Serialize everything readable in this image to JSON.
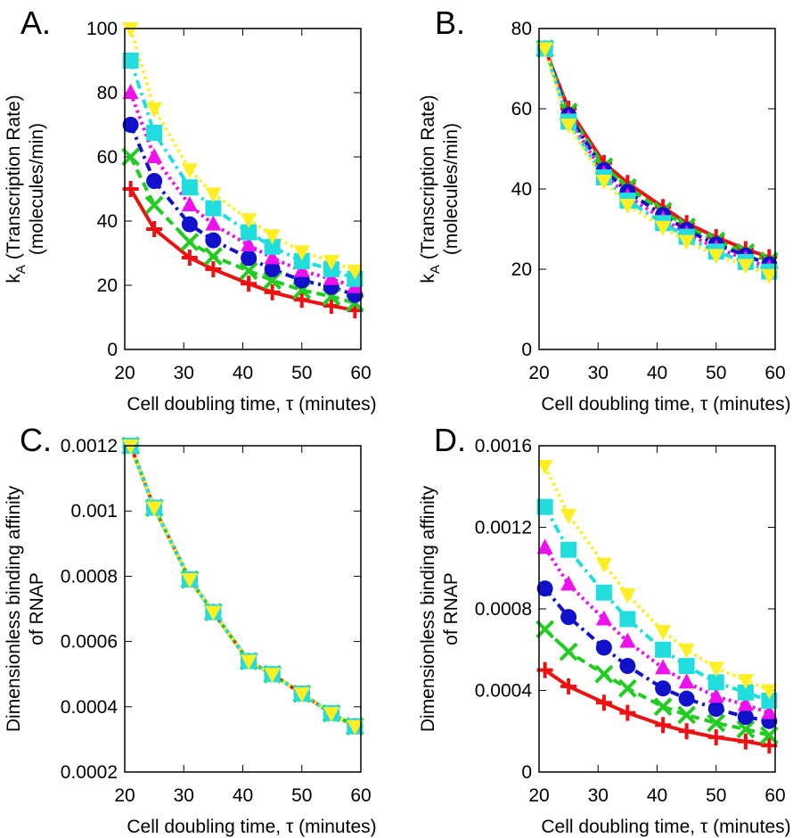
{
  "chart_data": [
    {
      "type": "line",
      "panel": "A.",
      "ylabel": {
        "symbol": "k",
        "subscript": "A",
        "text": "(Transcription Rate)",
        "line2": "(molecules/min)"
      },
      "xlabel": "Cell doubling time, τ (minutes)",
      "x": [
        21,
        25,
        31,
        35,
        41,
        45,
        50,
        55,
        59
      ],
      "xlim": [
        20,
        60
      ],
      "xticks": [
        20,
        30,
        40,
        50,
        60
      ],
      "ylim": [
        0,
        100
      ],
      "yticks": [
        0,
        20,
        40,
        60,
        80,
        100
      ],
      "series": [
        {
          "color": "#ee1111",
          "marker": "plus",
          "dash": "solid",
          "values": [
            50,
            37.5,
            28.6,
            25,
            20.5,
            17.8,
            15.5,
            13.6,
            12.2
          ]
        },
        {
          "color": "#22cc22",
          "marker": "cross",
          "dash": "dashed",
          "values": [
            60,
            45,
            33.5,
            29,
            24.5,
            21.5,
            18.5,
            16.5,
            14.5
          ]
        },
        {
          "color": "#1111cc",
          "marker": "circle",
          "dash": "dashdot",
          "values": [
            70,
            52.5,
            39,
            34,
            28.5,
            25,
            21.5,
            19.5,
            17
          ]
        },
        {
          "color": "#ee11ee",
          "marker": "triangle-up",
          "dash": "dotted",
          "values": [
            80,
            60,
            45,
            39,
            32.5,
            28.5,
            24.5,
            22,
            19.5
          ]
        },
        {
          "color": "#22dddd",
          "marker": "square",
          "dash": "dashdot",
          "values": [
            90,
            67.5,
            50.5,
            44,
            36.5,
            32,
            27.5,
            25,
            22
          ]
        },
        {
          "color": "#ffee22",
          "marker": "triangle-down",
          "dash": "dotted",
          "values": [
            100,
            75,
            56,
            48.5,
            40.5,
            35.5,
            30.5,
            27.5,
            24.5
          ]
        }
      ]
    },
    {
      "type": "line",
      "panel": "B.",
      "ylabel": {
        "symbol": "k",
        "subscript": "A",
        "text": "(Transcription Rate)",
        "line2": "(molecules/min)"
      },
      "xlabel": "Cell doubling time, τ (minutes)",
      "x": [
        21,
        25,
        31,
        35,
        41,
        45,
        50,
        55,
        59
      ],
      "xlim": [
        20,
        60
      ],
      "xticks": [
        20,
        30,
        40,
        50,
        60
      ],
      "ylim": [
        0,
        80
      ],
      "yticks": [
        0,
        20,
        40,
        60,
        80
      ],
      "series": [
        {
          "color": "#ee1111",
          "marker": "plus",
          "dash": "solid",
          "values": [
            75,
            60,
            46.5,
            41.5,
            35.5,
            31.5,
            28,
            25,
            23
          ]
        },
        {
          "color": "#22cc22",
          "marker": "cross",
          "dash": "dashed",
          "values": [
            75,
            59.2,
            45.6,
            40.4,
            34.5,
            30.6,
            27.1,
            24.2,
            22.1
          ]
        },
        {
          "color": "#1111cc",
          "marker": "circle",
          "dash": "dashdot",
          "values": [
            75,
            58.4,
            44.7,
            39.3,
            33.5,
            29.8,
            26.2,
            23.4,
            21.2
          ]
        },
        {
          "color": "#ee11ee",
          "marker": "triangle-up",
          "dash": "dotted",
          "values": [
            75,
            57.6,
            43.8,
            38.2,
            32.5,
            28.9,
            25.3,
            22.6,
            20.3
          ]
        },
        {
          "color": "#22dddd",
          "marker": "square",
          "dash": "dashdot",
          "values": [
            75,
            56.8,
            42.9,
            37.1,
            31.5,
            28.1,
            24.4,
            21.8,
            19.4
          ]
        },
        {
          "color": "#ffee22",
          "marker": "triangle-down",
          "dash": "dotted",
          "values": [
            75,
            56,
            42,
            36,
            30.5,
            27,
            23.5,
            21,
            18.5
          ]
        }
      ]
    },
    {
      "type": "line",
      "panel": "C.",
      "ylabel": {
        "text": "Dimensionless binding affinity",
        "line2": "of RNAP"
      },
      "xlabel": "Cell doubling time, τ (minutes)",
      "x": [
        21,
        25,
        31,
        35,
        41,
        45,
        50,
        55,
        59
      ],
      "xlim": [
        20,
        60
      ],
      "xticks": [
        20,
        30,
        40,
        50,
        60
      ],
      "ylim": [
        0.0002,
        0.0012
      ],
      "yticks": [
        0.0002,
        0.0004,
        0.0006,
        0.0008,
        0.001,
        0.0012
      ],
      "series": [
        {
          "color": "#ee1111",
          "marker": "plus",
          "dash": "solid",
          "values": [
            0.0012,
            0.00101,
            0.00079,
            0.00069,
            0.00054,
            0.0005,
            0.00044,
            0.00038,
            0.00034
          ]
        },
        {
          "color": "#22cc22",
          "marker": "cross",
          "dash": "dashed",
          "values": [
            0.0012,
            0.00101,
            0.00079,
            0.00069,
            0.00054,
            0.0005,
            0.00044,
            0.00038,
            0.00034
          ]
        },
        {
          "color": "#1111cc",
          "marker": "circle",
          "dash": "dashdot",
          "values": [
            0.0012,
            0.00101,
            0.00079,
            0.00069,
            0.00054,
            0.0005,
            0.00044,
            0.00038,
            0.00034
          ]
        },
        {
          "color": "#ee11ee",
          "marker": "triangle-up",
          "dash": "dotted",
          "values": [
            0.0012,
            0.00101,
            0.00079,
            0.00069,
            0.00054,
            0.0005,
            0.00044,
            0.00038,
            0.00034
          ]
        },
        {
          "color": "#22dddd",
          "marker": "square",
          "dash": "dashdot",
          "values": [
            0.0012,
            0.00101,
            0.00079,
            0.00069,
            0.00054,
            0.0005,
            0.00044,
            0.00038,
            0.00034
          ]
        },
        {
          "color": "#ffee22",
          "marker": "triangle-down",
          "dash": "dotted",
          "values": [
            0.0012,
            0.00101,
            0.00079,
            0.00069,
            0.00054,
            0.0005,
            0.00044,
            0.00038,
            0.00034
          ]
        }
      ]
    },
    {
      "type": "line",
      "panel": "D.",
      "ylabel": {
        "text": "Dimensionless binding affinity",
        "line2": "of RNAP"
      },
      "xlabel": "Cell doubling time, τ (minutes)",
      "x": [
        21,
        25,
        31,
        35,
        41,
        45,
        50,
        55,
        59
      ],
      "xlim": [
        20,
        60
      ],
      "xticks": [
        20,
        30,
        40,
        50,
        60
      ],
      "ylim": [
        0,
        0.0016
      ],
      "yticks": [
        0,
        0.0004,
        0.0008,
        0.0012,
        0.0016
      ],
      "series": [
        {
          "color": "#ee1111",
          "marker": "plus",
          "dash": "solid",
          "values": [
            0.0005,
            0.00042,
            0.00034,
            0.00029,
            0.00023,
            0.0002,
            0.00017,
            0.00015,
            0.00013
          ]
        },
        {
          "color": "#22cc22",
          "marker": "cross",
          "dash": "dashed",
          "values": [
            0.0007,
            0.00059,
            0.00048,
            0.00041,
            0.00032,
            0.00028,
            0.00024,
            0.00021,
            0.00018
          ]
        },
        {
          "color": "#1111cc",
          "marker": "circle",
          "dash": "dashdot",
          "values": [
            0.0009,
            0.00076,
            0.00061,
            0.00052,
            0.00041,
            0.00036,
            0.00031,
            0.00027,
            0.00025
          ]
        },
        {
          "color": "#ee11ee",
          "marker": "triangle-up",
          "dash": "dotted",
          "values": [
            0.0011,
            0.00092,
            0.00075,
            0.00064,
            0.00051,
            0.00044,
            0.00037,
            0.00033,
            0.00029
          ]
        },
        {
          "color": "#22dddd",
          "marker": "square",
          "dash": "dashdot",
          "values": [
            0.0013,
            0.00109,
            0.00088,
            0.00075,
            0.0006,
            0.00052,
            0.00044,
            0.00039,
            0.00035
          ]
        },
        {
          "color": "#ffee22",
          "marker": "triangle-down",
          "dash": "dotted",
          "values": [
            0.0015,
            0.00126,
            0.00102,
            0.00087,
            0.00069,
            0.0006,
            0.00051,
            0.00045,
            0.0004
          ]
        }
      ]
    }
  ]
}
